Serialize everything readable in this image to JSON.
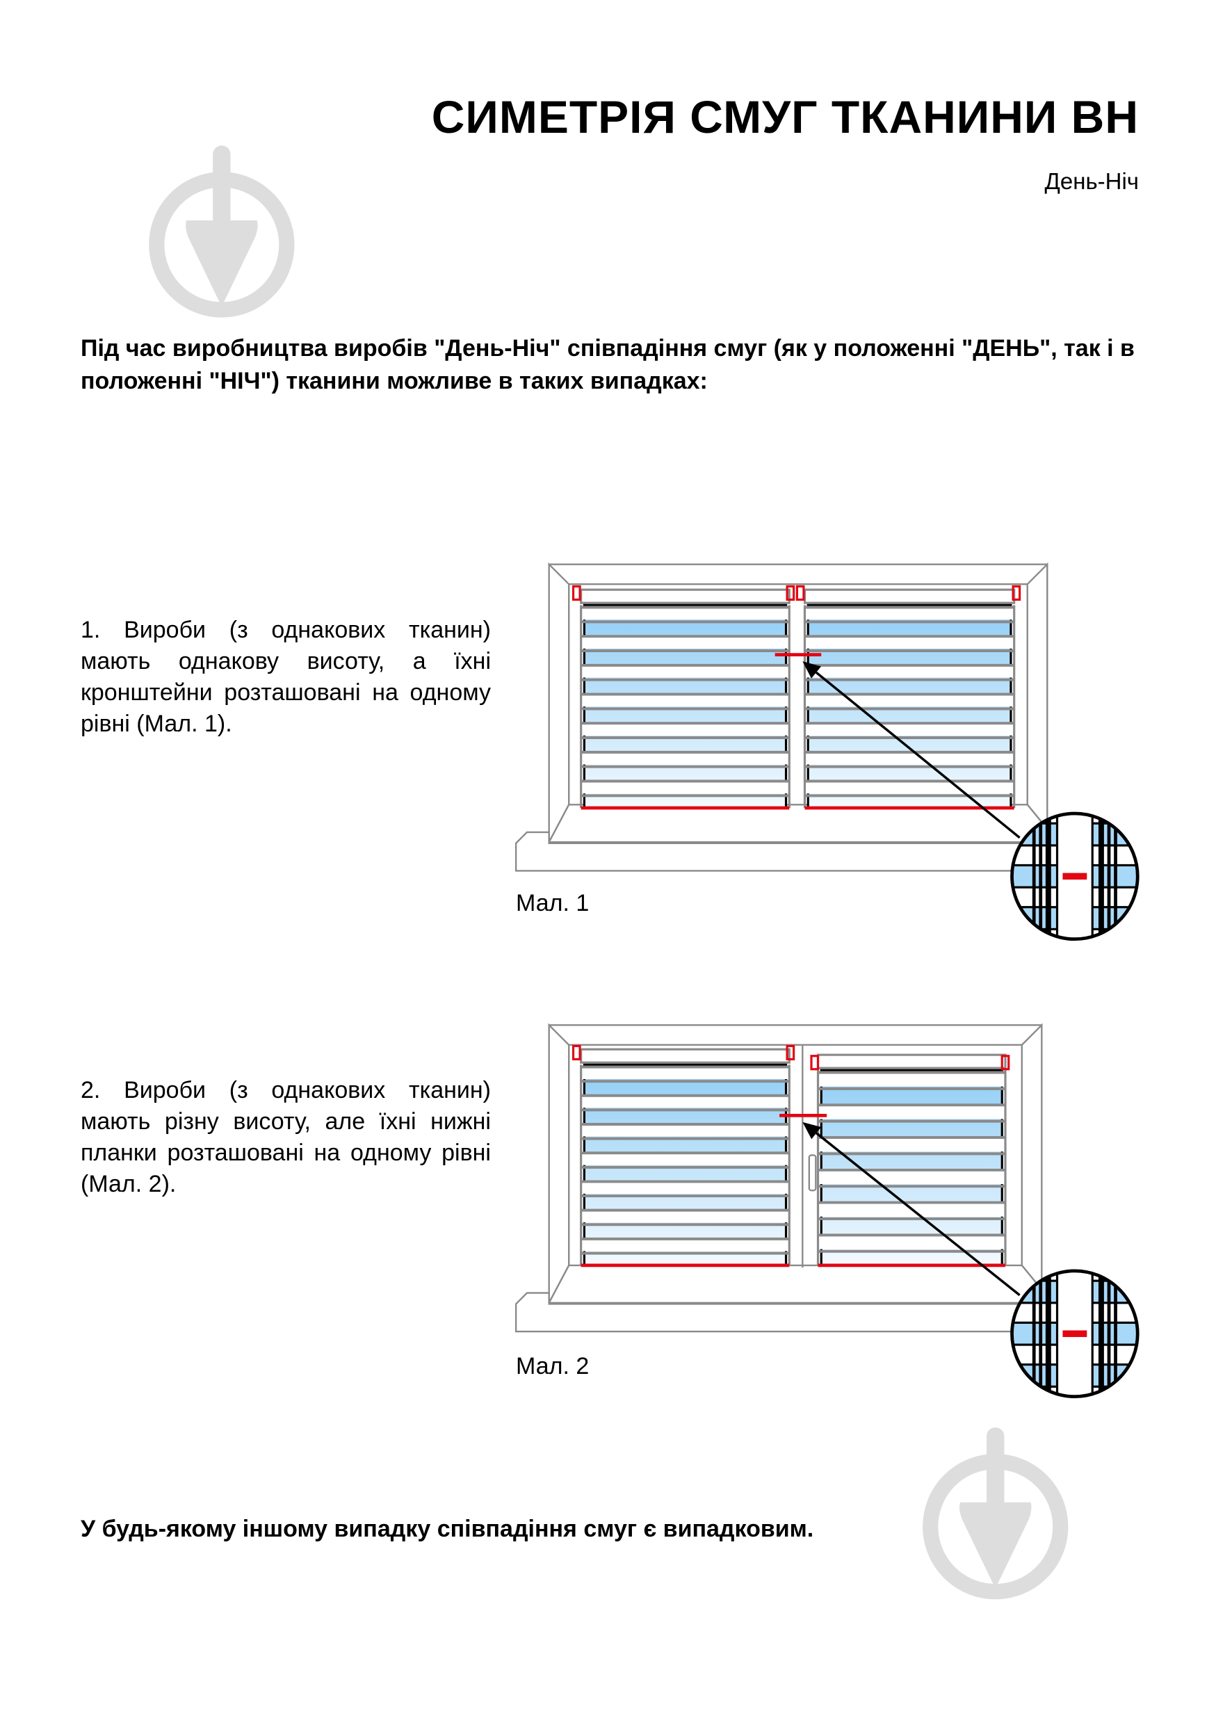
{
  "header": {
    "title": "СИМЕТРІЯ СМУГ ТКАНИНИ ВН",
    "subtitle": "День-Ніч"
  },
  "intro": "Під час виробництва виробів \"День-Ніч\" співпадіння смуг (як у положенні \"ДЕНЬ\", так і в положенні \"НІЧ\") тканини можливе в таких випадках:",
  "cases": [
    {
      "text": "1. Вироби (з однакових тканин) мають однакову висоту, а їхні кронштейни розташовані на одному рівні (Мал. 1).",
      "caption": "Мал. 1"
    },
    {
      "text": "2. Вироби (з однакових тканин) мають різну висоту, але їхні нижні планки розташовані на одному рівні (Мал. 2).",
      "caption": "Мал. 2"
    }
  ],
  "outro": "У будь-якому іншому випадку співпадіння смуг є випадковим.",
  "colors": {
    "accent": "#e30613",
    "glass": "#9fd3f5",
    "frame": "#8a8a8a",
    "watermark": "#dddddd"
  },
  "icons": [
    "trowel-logo-watermark",
    "magnifier-detail-circle",
    "arrow"
  ]
}
